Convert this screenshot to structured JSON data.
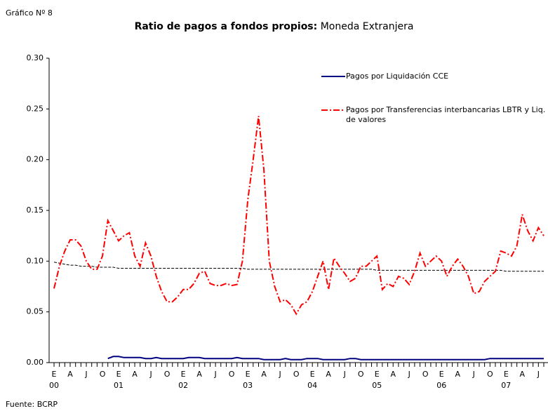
{
  "caption": "Gráfico Nº 8",
  "source": "Fuente: BCRP",
  "chart_data": {
    "type": "line",
    "title": "Ratio de pagos a fondos propios:",
    "subtitle": "Moneda Extranjera",
    "categories": [
      "E",
      null,
      null,
      "A",
      null,
      null,
      "J",
      null,
      null,
      "O",
      null,
      null,
      "E",
      null,
      null,
      "A",
      null,
      null,
      "J",
      null,
      null,
      "O",
      null,
      null,
      "E",
      null,
      null,
      "A",
      null,
      null,
      "J",
      null,
      null,
      "O",
      null,
      null,
      "E",
      null,
      null,
      "A",
      null,
      null,
      "J",
      null,
      null,
      "O",
      null,
      null,
      "E",
      null,
      null,
      "A",
      null,
      null,
      "J",
      null,
      null,
      "O",
      null,
      null,
      "E",
      null,
      null,
      "A",
      null,
      null,
      "J",
      null,
      null,
      "O",
      null,
      null,
      "E",
      null,
      null,
      "A",
      null,
      null,
      "J",
      null,
      null,
      "O",
      null,
      null,
      "E",
      null,
      null,
      "A",
      null,
      null,
      "J",
      null
    ],
    "years": [
      "00",
      "01",
      "02",
      "03",
      "04",
      "05",
      "06",
      "07"
    ],
    "ylim": [
      0,
      0.3
    ],
    "yticks": [
      {
        "value": 0,
        "label": "0.00"
      },
      {
        "value": 0.05,
        "label": "0.05"
      },
      {
        "value": 0.1,
        "label": "0.10"
      },
      {
        "value": 0.15,
        "label": "0.15"
      },
      {
        "value": 0.2,
        "label": "0.20"
      },
      {
        "value": 0.25,
        "label": "0.25"
      },
      {
        "value": 0.3,
        "label": "0.30"
      }
    ],
    "grid": false,
    "series": [
      {
        "name": "Pagos por Liquidación CCE",
        "color": "#000080",
        "dash": "none",
        "values": [
          null,
          null,
          null,
          null,
          null,
          null,
          null,
          null,
          null,
          null,
          0.004,
          0.006,
          0.006,
          0.005,
          0.005,
          0.005,
          0.005,
          0.004,
          0.004,
          0.005,
          0.004,
          0.004,
          0.004,
          0.004,
          0.004,
          0.005,
          0.005,
          0.005,
          0.004,
          0.004,
          0.004,
          0.004,
          0.004,
          0.004,
          0.005,
          0.004,
          0.004,
          0.004,
          0.004,
          0.003,
          0.003,
          0.003,
          0.003,
          0.004,
          0.003,
          0.003,
          0.003,
          0.004,
          0.004,
          0.004,
          0.003,
          0.003,
          0.003,
          0.003,
          0.003,
          0.004,
          0.004,
          0.003,
          0.003,
          0.003,
          0.003,
          0.003,
          0.003,
          0.003,
          0.003,
          0.003,
          0.003,
          0.003,
          0.003,
          0.003,
          0.003,
          0.003,
          0.003,
          0.003,
          0.003,
          0.003,
          0.003,
          0.003,
          0.003,
          0.003,
          0.003,
          0.004,
          0.004,
          0.004,
          0.004,
          0.004,
          0.004,
          0.004,
          0.004,
          0.004,
          0.004,
          0.004
        ]
      },
      {
        "name": "Pagos por Transferencias interbancarias LBTR y Liq. de valores",
        "color": "#ff0000",
        "dash": "9,3,2,3",
        "values": [
          0.073,
          0.095,
          0.11,
          0.121,
          0.121,
          0.115,
          0.1,
          0.092,
          0.092,
          0.105,
          0.14,
          0.13,
          0.12,
          0.125,
          0.128,
          0.105,
          0.095,
          0.118,
          0.105,
          0.085,
          0.07,
          0.06,
          0.06,
          0.065,
          0.072,
          0.072,
          0.078,
          0.088,
          0.09,
          0.078,
          0.076,
          0.076,
          0.078,
          0.076,
          0.077,
          0.1,
          0.16,
          0.2,
          0.243,
          0.19,
          0.1,
          0.075,
          0.06,
          0.062,
          0.057,
          0.048,
          0.057,
          0.06,
          0.07,
          0.085,
          0.1,
          0.072,
          0.103,
          0.095,
          0.088,
          0.08,
          0.083,
          0.095,
          0.095,
          0.1,
          0.105,
          0.072,
          0.078,
          0.075,
          0.085,
          0.083,
          0.077,
          0.09,
          0.108,
          0.095,
          0.1,
          0.105,
          0.1,
          0.085,
          0.095,
          0.102,
          0.095,
          0.085,
          0.068,
          0.07,
          0.08,
          0.085,
          0.09,
          0.11,
          0.108,
          0.105,
          0.115,
          0.146,
          0.13,
          0.12,
          0.133,
          0.125
        ]
      }
    ],
    "trend": {
      "color": "#000000",
      "dash": "4,2",
      "values": [
        0.099,
        0.098,
        0.097,
        0.096,
        0.096,
        0.095,
        0.095,
        0.095,
        0.094,
        0.094,
        0.094,
        0.094,
        0.093,
        0.093,
        0.093,
        0.093,
        0.093,
        0.093,
        0.093,
        0.093,
        0.093,
        0.093,
        0.093,
        0.093,
        0.093,
        0.093,
        0.093,
        0.093,
        0.093,
        0.093,
        0.093,
        0.093,
        0.093,
        0.093,
        0.093,
        0.093,
        0.092,
        0.092,
        0.092,
        0.092,
        0.092,
        0.092,
        0.092,
        0.092,
        0.092,
        0.092,
        0.092,
        0.092,
        0.092,
        0.092,
        0.092,
        0.092,
        0.092,
        0.092,
        0.092,
        0.092,
        0.092,
        0.092,
        0.092,
        0.092,
        0.091,
        0.091,
        0.091,
        0.091,
        0.091,
        0.091,
        0.091,
        0.091,
        0.091,
        0.091,
        0.091,
        0.091,
        0.091,
        0.091,
        0.091,
        0.091,
        0.091,
        0.091,
        0.091,
        0.091,
        0.091,
        0.091,
        0.091,
        0.091,
        0.09,
        0.09,
        0.09,
        0.09,
        0.09,
        0.09,
        0.09,
        0.09
      ]
    }
  }
}
